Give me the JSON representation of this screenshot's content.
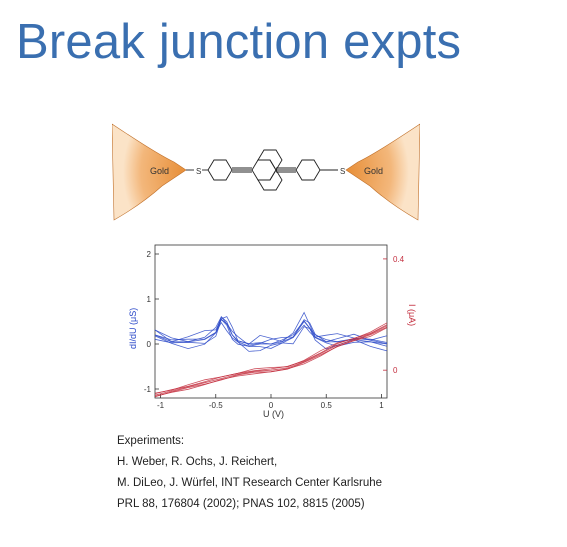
{
  "slide": {
    "title": "Break junction expts"
  },
  "molecule": {
    "left_electrode": "Gold",
    "right_electrode": "Gold",
    "left_atom": "S",
    "right_atom": "S"
  },
  "chart_data": {
    "type": "line",
    "xlabel": "U (V)",
    "ylabel_left": "dI/dU (μS)",
    "ylabel_right": "I (μA)",
    "x_ticks": [
      "-1",
      "-0.5",
      "0",
      "0.5",
      "1"
    ],
    "y_left_ticks": [
      "-1",
      "0",
      "1",
      "2"
    ],
    "y_right_ticks": [
      "0",
      "0.4"
    ],
    "xlim": [
      -1.05,
      1.05
    ],
    "ylim_left": [
      -1.2,
      2.2
    ],
    "ylim_right": [
      -0.1,
      0.45
    ],
    "grid": false,
    "series": [
      {
        "axis": "left",
        "color": "#2b49c8",
        "x": [
          -1.05,
          -0.9,
          -0.75,
          -0.6,
          -0.5,
          -0.45,
          -0.4,
          -0.35,
          -0.3,
          -0.2,
          -0.1,
          0,
          0.1,
          0.2,
          0.3,
          0.35,
          0.4,
          0.5,
          0.6,
          0.75,
          0.9,
          1.05
        ],
        "y": [
          0.2,
          0.05,
          0.05,
          0.1,
          0.25,
          0.55,
          0.45,
          0.2,
          0.05,
          -0.05,
          0,
          0,
          0.05,
          0.15,
          0.5,
          0.35,
          0.15,
          0.05,
          0.05,
          0.1,
          0.05,
          0.0
        ]
      },
      {
        "axis": "right",
        "color": "#c43040",
        "x": [
          -1.05,
          -0.9,
          -0.75,
          -0.6,
          -0.45,
          -0.3,
          -0.15,
          0,
          0.15,
          0.3,
          0.45,
          0.6,
          0.75,
          0.9,
          1.05
        ],
        "y": [
          -0.09,
          -0.075,
          -0.06,
          -0.045,
          -0.03,
          -0.015,
          -0.004,
          0,
          0.008,
          0.03,
          0.06,
          0.09,
          0.11,
          0.13,
          0.16
        ]
      }
    ]
  },
  "references": {
    "heading": "Experiments:",
    "line1": "H. Weber, R. Ochs, J. Reichert,",
    "line2": "M. DiLeo, J. Würfel, INT Research Center Karlsruhe",
    "line3": "PRL 88, 176804 (2002); PNAS 102, 8815 (2005)"
  },
  "colors": {
    "title": "#3a6fb0",
    "gold": "#e8913c",
    "blue_series": "#2b49c8",
    "red_series": "#c43040"
  }
}
